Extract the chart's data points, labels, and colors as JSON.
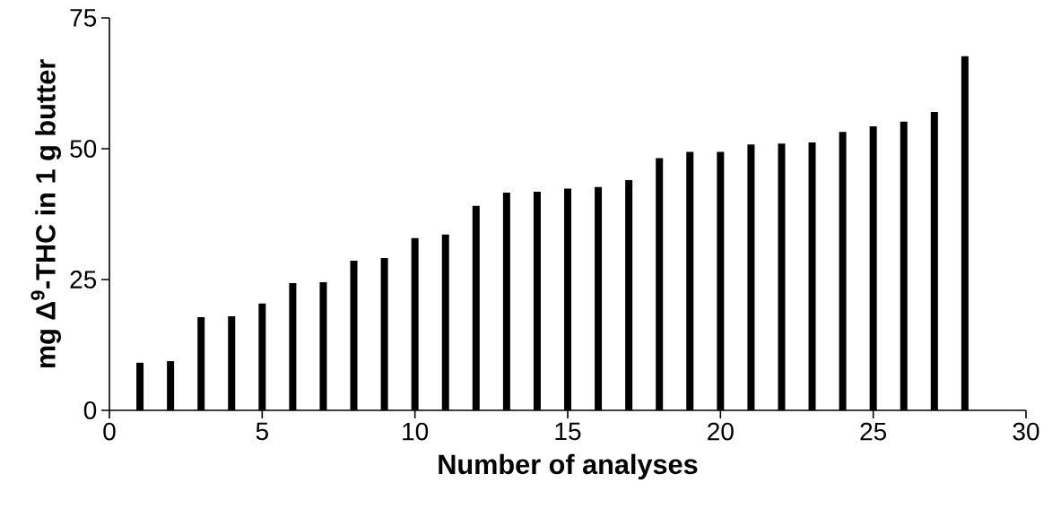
{
  "chart_data": {
    "type": "bar",
    "xlabel": "Number of analyses",
    "ylabel": "mg Δ$^{9}$-THC in 1 g butter",
    "x": [
      1,
      2,
      3,
      4,
      5,
      6,
      7,
      8,
      9,
      10,
      11,
      12,
      13,
      14,
      15,
      16,
      17,
      18,
      19,
      20,
      21,
      22,
      23,
      24,
      25,
      26,
      27,
      28
    ],
    "values": [
      9.1,
      9.4,
      17.8,
      18.0,
      20.4,
      24.3,
      24.5,
      28.6,
      29.1,
      32.9,
      33.6,
      39.1,
      41.6,
      41.8,
      42.4,
      42.7,
      44.0,
      48.2,
      49.4,
      49.4,
      50.8,
      51.0,
      51.2,
      53.2,
      54.3,
      55.2,
      57.0,
      67.7
    ],
    "color": "#000000",
    "xlim": [
      0,
      30
    ],
    "xticks": [
      0,
      5,
      10,
      15,
      20,
      25,
      30
    ],
    "ylim": [
      0,
      75
    ],
    "yticks": [
      0,
      25,
      50,
      75
    ]
  }
}
